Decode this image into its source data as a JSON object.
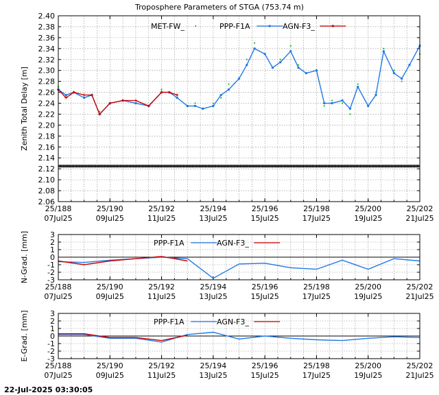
{
  "title": "Troposphere Parameters of STGA (753.74 m)",
  "footer": "22-Jul-2025 03:30:05",
  "colors": {
    "met": "#22bb22",
    "ppp": "#1e78e6",
    "agn": "#cc0000",
    "ref_line": "#000000",
    "grid": "#888888"
  },
  "chart_data": [
    {
      "type": "line",
      "name": "ztd",
      "ylabel": "Zenith Total Delay [m]",
      "xlim": [
        188,
        202
      ],
      "ylim": [
        2.06,
        2.4
      ],
      "yticks": [
        "2.06",
        "2.08",
        "2.10",
        "2.12",
        "2.14",
        "2.16",
        "2.18",
        "2.20",
        "2.22",
        "2.24",
        "2.26",
        "2.28",
        "2.30",
        "2.32",
        "2.34",
        "2.36",
        "2.38",
        "2.40"
      ],
      "xticks": [
        {
          "x": 188,
          "doy": "25/188",
          "date": "07Jul25"
        },
        {
          "x": 190,
          "doy": "25/190",
          "date": "09Jul25"
        },
        {
          "x": 192,
          "doy": "25/192",
          "date": "11Jul25"
        },
        {
          "x": 194,
          "doy": "25/194",
          "date": "13Jul25"
        },
        {
          "x": 196,
          "doy": "25/196",
          "date": "15Jul25"
        },
        {
          "x": 198,
          "doy": "25/198",
          "date": "17Jul25"
        },
        {
          "x": 200,
          "doy": "25/200",
          "date": "19Jul25"
        },
        {
          "x": 202,
          "doy": "25/202",
          "date": "21Jul25"
        }
      ],
      "grid": true,
      "legend": "top",
      "series": [
        {
          "name": "MET-FW_",
          "style": "points",
          "x": [
            188,
            188.3,
            188.6,
            189,
            189.3,
            189.6,
            190,
            190.5,
            191,
            191.5,
            192,
            192.3,
            192.6,
            193,
            193.3,
            193.6,
            194,
            194.3,
            194.6,
            195,
            195.3,
            195.6,
            196,
            196.3,
            196.6,
            197,
            197.3,
            197.6,
            198,
            198.3,
            198.6,
            199,
            199.3,
            199.6,
            200,
            200.3,
            200.6,
            201,
            201.3,
            201.6,
            202
          ],
          "y": [
            2.27,
            2.255,
            2.26,
            2.25,
            2.255,
            2.225,
            2.24,
            2.245,
            2.24,
            2.235,
            2.265,
            2.26,
            2.255,
            2.235,
            2.24,
            2.23,
            2.24,
            2.25,
            2.275,
            2.285,
            2.32,
            2.35,
            2.33,
            2.305,
            2.32,
            2.345,
            2.31,
            2.295,
            2.3,
            2.235,
            2.245,
            2.24,
            2.22,
            2.275,
            2.235,
            2.26,
            2.34,
            2.3,
            2.28,
            2.31,
            2.33
          ]
        },
        {
          "name": "PPP-F1A",
          "style": "line-points",
          "x": [
            188,
            188.3,
            188.6,
            189,
            189.3,
            189.6,
            190,
            190.5,
            191,
            191.5,
            192,
            192.3,
            192.6,
            193,
            193.3,
            193.6,
            194,
            194.3,
            194.6,
            195,
            195.3,
            195.6,
            196,
            196.3,
            196.6,
            197,
            197.3,
            197.6,
            198,
            198.3,
            198.6,
            199,
            199.3,
            199.6,
            200,
            200.3,
            200.6,
            201,
            201.3,
            201.6,
            202
          ],
          "y": [
            2.265,
            2.255,
            2.26,
            2.25,
            2.255,
            2.22,
            2.24,
            2.245,
            2.24,
            2.235,
            2.26,
            2.26,
            2.25,
            2.235,
            2.235,
            2.23,
            2.235,
            2.255,
            2.265,
            2.285,
            2.31,
            2.34,
            2.33,
            2.305,
            2.315,
            2.335,
            2.305,
            2.295,
            2.3,
            2.24,
            2.24,
            2.245,
            2.23,
            2.27,
            2.235,
            2.255,
            2.335,
            2.295,
            2.285,
            2.31,
            2.345
          ]
        },
        {
          "name": "AGN-F3_",
          "style": "line-points",
          "x": [
            188,
            188.3,
            188.6,
            189,
            189.3,
            189.6,
            190,
            190.5,
            191,
            191.5,
            192,
            192.3,
            192.6
          ],
          "y": [
            2.265,
            2.25,
            2.26,
            2.255,
            2.255,
            2.22,
            2.24,
            2.245,
            2.245,
            2.235,
            2.26,
            2.26,
            2.255
          ]
        },
        {
          "name": "",
          "style": "ref-line",
          "x": [
            188,
            202
          ],
          "y": [
            2.125,
            2.125
          ]
        }
      ]
    },
    {
      "type": "line",
      "name": "ngrad",
      "ylabel": "N-Grad. [mm]",
      "xlim": [
        188,
        202
      ],
      "ylim": [
        -3,
        3
      ],
      "yticks": [
        "-3",
        "-2",
        "-1",
        "0",
        "1",
        "2",
        "3"
      ],
      "xticks": [
        {
          "x": 188,
          "doy": "25/188",
          "date": "07Jul25"
        },
        {
          "x": 190,
          "doy": "25/190",
          "date": "09Jul25"
        },
        {
          "x": 192,
          "doy": "25/192",
          "date": "11Jul25"
        },
        {
          "x": 194,
          "doy": "25/194",
          "date": "13Jul25"
        },
        {
          "x": 196,
          "doy": "25/196",
          "date": "15Jul25"
        },
        {
          "x": 198,
          "doy": "25/198",
          "date": "17Jul25"
        },
        {
          "x": 200,
          "doy": "25/200",
          "date": "19Jul25"
        },
        {
          "x": 202,
          "doy": "25/202",
          "date": "21Jul25"
        }
      ],
      "grid": true,
      "legend": "top",
      "series": [
        {
          "name": "PPP-F1A",
          "x": [
            188,
            189,
            190,
            191,
            192,
            193,
            194,
            195,
            196,
            197,
            198,
            199,
            200,
            201,
            202
          ],
          "y": [
            -0.6,
            -0.7,
            -0.4,
            -0.2,
            0.0,
            -0.2,
            -2.8,
            -0.9,
            -0.8,
            -1.4,
            -1.6,
            -0.4,
            -1.6,
            -0.2,
            -0.5
          ]
        },
        {
          "name": "AGN-F3_",
          "x": [
            188,
            189,
            190,
            191,
            192,
            193
          ],
          "y": [
            -0.5,
            -1.0,
            -0.5,
            -0.2,
            0.1,
            -0.5
          ]
        }
      ]
    },
    {
      "type": "line",
      "name": "egrad",
      "ylabel": "E-Grad. [mm]",
      "xlim": [
        188,
        202
      ],
      "ylim": [
        -3,
        3
      ],
      "yticks": [
        "-3",
        "-2",
        "-1",
        "0",
        "1",
        "2",
        "3"
      ],
      "xticks": [
        {
          "x": 188,
          "doy": "25/188",
          "date": "07Jul25"
        },
        {
          "x": 190,
          "doy": "25/190",
          "date": "09Jul25"
        },
        {
          "x": 192,
          "doy": "25/192",
          "date": "11Jul25"
        },
        {
          "x": 194,
          "doy": "25/194",
          "date": "13Jul25"
        },
        {
          "x": 196,
          "doy": "25/196",
          "date": "15Jul25"
        },
        {
          "x": 198,
          "doy": "25/198",
          "date": "17Jul25"
        },
        {
          "x": 200,
          "doy": "25/200",
          "date": "19Jul25"
        },
        {
          "x": 202,
          "doy": "25/202",
          "date": "21Jul25"
        }
      ],
      "grid": true,
      "legend": "top",
      "series": [
        {
          "name": "PPP-F1A",
          "x": [
            188,
            189,
            190,
            191,
            192,
            193,
            194,
            195,
            196,
            197,
            198,
            199,
            200,
            201,
            202
          ],
          "y": [
            0.2,
            0.2,
            -0.3,
            -0.3,
            -0.8,
            0.2,
            0.5,
            -0.4,
            0.0,
            -0.3,
            -0.5,
            -0.6,
            -0.3,
            -0.1,
            -0.2
          ]
        },
        {
          "name": "AGN-F3_",
          "x": [
            188,
            189,
            190,
            191,
            192,
            193
          ],
          "y": [
            0.3,
            0.3,
            -0.2,
            -0.2,
            -0.6,
            0.1
          ]
        }
      ]
    }
  ]
}
